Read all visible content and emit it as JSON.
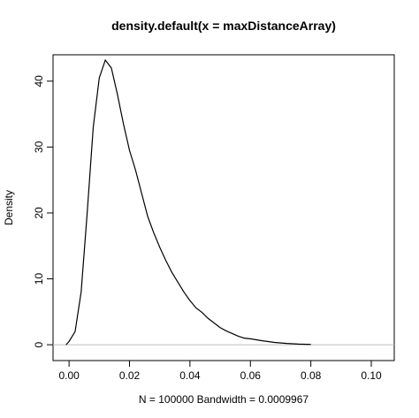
{
  "chart_data": {
    "type": "line",
    "title": "density.default(x = maxDistanceArray)",
    "xlabel": "N = 100000   Bandwidth = 0.0009967",
    "ylabel": "Density",
    "x": [
      -0.001,
      0.0,
      0.002,
      0.004,
      0.006,
      0.008,
      0.01,
      0.012,
      0.014,
      0.016,
      0.018,
      0.02,
      0.022,
      0.024,
      0.026,
      0.028,
      0.03,
      0.032,
      0.034,
      0.036,
      0.038,
      0.04,
      0.042,
      0.044,
      0.046,
      0.048,
      0.05,
      0.052,
      0.054,
      0.056,
      0.058,
      0.06,
      0.064,
      0.068,
      0.072,
      0.076,
      0.08
    ],
    "series": [
      {
        "color": "#000000",
        "values": [
          0,
          0.5,
          2,
          8,
          20,
          33,
          40.5,
          43.2,
          42,
          38,
          33.5,
          29.5,
          26.5,
          23,
          19.5,
          17,
          14.8,
          12.8,
          11,
          9.5,
          8,
          6.7,
          5.6,
          4.9,
          4,
          3.3,
          2.6,
          2.1,
          1.7,
          1.3,
          1,
          0.9,
          0.6,
          0.35,
          0.2,
          0.1,
          0.05
        ]
      }
    ],
    "xlim": [
      -0.0053,
      0.1076
    ],
    "ylim": [
      -2.4,
      44
    ],
    "xticks": [
      {
        "value": 0,
        "label": "0.00"
      },
      {
        "value": 0.02,
        "label": "0.02"
      },
      {
        "value": 0.04,
        "label": "0.04"
      },
      {
        "value": 0.06,
        "label": "0.06"
      },
      {
        "value": 0.08,
        "label": "0.08"
      },
      {
        "value": 0.1,
        "label": "0.10"
      }
    ],
    "yticks": [
      0,
      10,
      20,
      30,
      40
    ],
    "zero_line": true,
    "zero_line_color": "#bebebe"
  }
}
